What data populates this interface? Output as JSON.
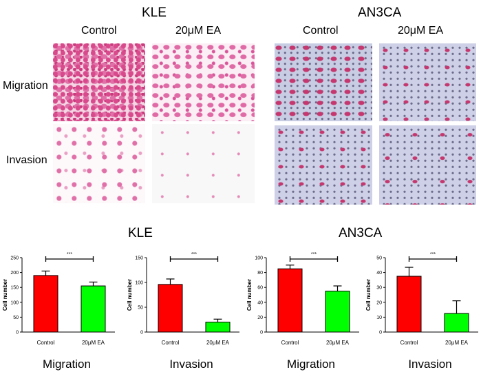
{
  "panels": {
    "top_titles": [
      "KLE",
      "AN3CA"
    ],
    "column_headers": [
      "Control",
      "20μM EA",
      "Control",
      "20μM EA"
    ],
    "row_labels": [
      "Migration",
      "Invasion"
    ],
    "bottom_titles": [
      "KLE",
      "AN3CA"
    ]
  },
  "colors": {
    "control": "#ff0000",
    "treated": "#00ff00"
  },
  "chart_data": [
    {
      "type": "bar",
      "cell_line": "KLE",
      "title": "Migration",
      "ylabel": "Cell number",
      "categories": [
        "Control",
        "20μM EA"
      ],
      "values": [
        190,
        155
      ],
      "errors": [
        15,
        13
      ],
      "ylim": [
        0,
        250
      ],
      "yticks": [
        "0",
        "50",
        "100",
        "150",
        "200",
        "250"
      ],
      "significance": "***"
    },
    {
      "type": "bar",
      "cell_line": "KLE",
      "title": "Invasion",
      "ylabel": "Cell number",
      "categories": [
        "Control",
        "20μM EA"
      ],
      "values": [
        96,
        20
      ],
      "errors": [
        11,
        6
      ],
      "ylim": [
        0,
        150
      ],
      "yticks": [
        "0",
        "50",
        "100",
        "150"
      ],
      "significance": "***"
    },
    {
      "type": "bar",
      "cell_line": "AN3CA",
      "title": "Migration",
      "ylabel": "Cell number",
      "categories": [
        "Control",
        "20μM EA"
      ],
      "values": [
        85,
        55
      ],
      "errors": [
        5,
        7
      ],
      "ylim": [
        0,
        100
      ],
      "yticks": [
        "0",
        "20",
        "40",
        "60",
        "80",
        "100"
      ],
      "significance": "***"
    },
    {
      "type": "bar",
      "cell_line": "AN3CA",
      "title": "Invasion",
      "ylabel": "Cell number",
      "categories": [
        "Control",
        "20μM EA"
      ],
      "values": [
        37.5,
        12.5
      ],
      "errors": [
        6,
        8.5
      ],
      "ylim": [
        0,
        50
      ],
      "yticks": [
        "0",
        "10",
        "20",
        "30",
        "40",
        "50"
      ],
      "significance": "***"
    }
  ]
}
